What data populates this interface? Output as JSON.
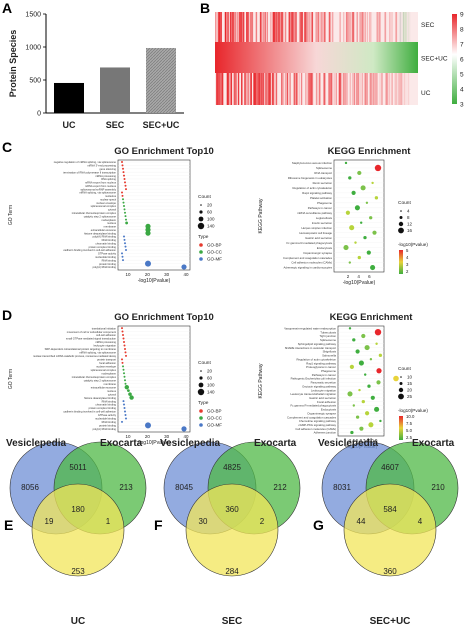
{
  "panels": {
    "A": {
      "letter": "A"
    },
    "B": {
      "letter": "B"
    },
    "C": {
      "letter": "C"
    },
    "D": {
      "letter": "D"
    },
    "E": {
      "letter": "E"
    },
    "F": {
      "letter": "F"
    },
    "G": {
      "letter": "G"
    }
  },
  "chart_data": [
    {
      "panel": "A",
      "type": "bar",
      "categories": [
        "UC",
        "SEC",
        "SEC+UC"
      ],
      "values": [
        455,
        690,
        985
      ],
      "ylabel": "Protein Species",
      "ylim": [
        0,
        1500
      ],
      "yticks": [
        "0",
        "500",
        "1000",
        "1500"
      ],
      "colors": [
        "#000000",
        "#777777",
        "#999999"
      ],
      "hatched": [
        false,
        false,
        true
      ]
    },
    {
      "panel": "B",
      "type": "heatmap",
      "rows": [
        "SEC",
        "SEC+UC",
        "UC"
      ],
      "legend_ticks": [
        "9",
        "8",
        "7",
        "6",
        "5",
        "4",
        "3"
      ],
      "colors": {
        "high": "#e8262b",
        "mid": "#ffffff",
        "low": "#3fae3f"
      }
    },
    {
      "panel": "C",
      "type": "scatter",
      "title": "GO Enrichment Top10",
      "ylabel": "GO Term",
      "xlabel": "-log10(Pvalue)",
      "xticks": [
        "10",
        "20",
        "30",
        "40"
      ],
      "legend": {
        "count_title": "Count",
        "count_values": [
          "20",
          "60",
          "100",
          "140"
        ],
        "type_title": "Type",
        "types": [
          {
            "name": "GO-BP",
            "color": "#e63a2e"
          },
          {
            "name": "GO-CC",
            "color": "#3aa843"
          },
          {
            "name": "GO-MF",
            "color": "#4a78c6"
          }
        ]
      },
      "terms": [
        "negative regulation of mRNA splicing, via spliceosome",
        "mRNA 3'-end processing",
        "gene silencing",
        "termination of RNA polymerase II transcription",
        "mRNA processing",
        "RNA splicing",
        "mRNA export from nucleus",
        "mRNA export from nucleus",
        "spliceosomal snRNP assembly",
        "mRNA splicing, via spliceosome",
        "nucleolus",
        "nuclear speck",
        "nuclear envelope",
        "spliceosomal complex",
        "cytosol",
        "intracellular ribonucleoprotein complex",
        "catalytic step 2 spliceosome",
        "nucleoplasm",
        "nucleus",
        "membrane",
        "extracellular exosome",
        "histone deacetylase binding",
        "poly(A) RNA binding",
        "DNA binding",
        "chromatin binding",
        "protein complex binding",
        "cadherin binding involved in cell-cell adhesion",
        "GTPase activity",
        "nucleotide binding",
        "RNA binding",
        "protein binding",
        "poly(A) RNA binding"
      ]
    },
    {
      "panel": "C",
      "type": "scatter",
      "title": "KEGG Enrichment",
      "ylabel": "KEGG Pathway",
      "xlabel": "-log10(Pvalue)",
      "xticks": [
        "2",
        "4",
        "6"
      ],
      "legend": {
        "count_title": "Count",
        "count_values": [
          "4",
          "8",
          "12",
          "16"
        ],
        "color_title": "-log10(Pvalue)",
        "color_ticks": [
          "5",
          "4",
          "3",
          "2"
        ]
      },
      "terms": [
        "Staphylococcus aureus infection",
        "Spliceosome",
        "RNA transport",
        "Ribosome biogenesis in eukaryotes",
        "Renin secretion",
        "Regulation of actin cytoskeleton",
        "Rap1 signaling pathway",
        "Platelet activation",
        "Phagosome",
        "Pathways in cancer",
        "mRNA surveillance pathway",
        "Legionellosis",
        "Insulin secretion",
        "Herpes simplex infection",
        "Hematopoietic cell lineage",
        "Gastric acid secretion",
        "Fc gamma R-mediated phagocytosis",
        "Endocytosis",
        "Dopaminergic synapse",
        "Complement and coagulation cascades",
        "Cell adhesion molecules (CAMs)",
        "Adrenergic signaling in cardiomyocytes"
      ]
    },
    {
      "panel": "D",
      "type": "scatter",
      "title": "GO Enrichment Top10",
      "ylabel": "GO Term",
      "xlabel": "-log10(Pvalue)",
      "xticks": [
        "10",
        "20",
        "30",
        "40"
      ],
      "legend": {
        "count_title": "Count",
        "count_values": [
          "20",
          "60",
          "100",
          "140"
        ],
        "type_title": "Type",
        "types": [
          {
            "name": "GO-BP",
            "color": "#e63a2e"
          },
          {
            "name": "GO-CC",
            "color": "#3aa843"
          },
          {
            "name": "GO-MF",
            "color": "#4a78c6"
          }
        ]
      },
      "terms": [
        "translational initiation",
        "movement of cell or subcellular component",
        "cell-cell adhesion",
        "small GTPase mediated signal transduction",
        "mRNA processing",
        "leukocyte migration",
        "SRP-dependent cotranslational protein targeting to membrane",
        "mRNA splicing, via spliceosome",
        "nuclear-transcribed mRNA catabolic process, nonsense-mediated decay",
        "protein transport",
        "focal adhesion",
        "nuclear envelope",
        "spliceosomal complex",
        "nucleoplasm",
        "intracellular ribonucleoprotein complex",
        "catalytic step 2 spliceosome",
        "membrane",
        "extracellular exosome",
        "nucleus",
        "cytosol",
        "histone deacetylase binding",
        "RNA binding",
        "chromatin binding",
        "protein complex binding",
        "cadherin binding involved in cell-cell adhesion",
        "GTPase activity",
        "nucleotide binding",
        "RNA binding",
        "protein binding",
        "poly(A) RNA binding"
      ]
    },
    {
      "panel": "D",
      "type": "scatter",
      "title": "KEGG Enrichment",
      "ylabel": "KEGG Pathway",
      "xlabel": "-log10(Pvalue)",
      "xticks": [
        "2.5",
        "5.0",
        "7.5",
        "10.0"
      ],
      "legend": {
        "count_title": "Count",
        "count_values": [
          "10",
          "15",
          "20",
          "25"
        ],
        "color_title": "-log10(Pvalue)",
        "color_ticks": [
          "10.0",
          "7.5",
          "5.0",
          "2.5"
        ]
      },
      "terms": [
        "Vasopressin-regulated water reabsorption",
        "Tuberculosis",
        "Tight junction",
        "Spliceosome",
        "Sphingolipid signaling pathway",
        "SNARE interactions in vesicular transport",
        "Shigellosis",
        "Salmonella",
        "Regulation of actin cytoskeleton",
        "Rap1 signaling pathway",
        "Proteoglycans in cancer",
        "Phagosome",
        "Pathways in cancer",
        "Pathogenic Escherichia coli infection",
        "Pancreatic secretion",
        "Oxytocin signaling pathway",
        "Leukocyte migration",
        "Leukocyte transendothelial migration",
        "Gastric acid secretion",
        "Focal adhesion",
        "Fc gamma R-mediated phagocytosis",
        "Endocytosis",
        "Dopaminergic synapse",
        "Complement and coagulation cascades",
        "Chemokine signaling pathway",
        "cGMP-PKG signaling pathway",
        "Cell adhesion molecules (CAMs)",
        "Adherens junction"
      ]
    },
    {
      "panel": "E",
      "type": "venn",
      "sets": [
        "Vesiclepedia",
        "Exocarta",
        "UC"
      ],
      "regions": {
        "a_only": "8056",
        "ab": "5011",
        "b_only": "213",
        "abc": "180",
        "ac": "19",
        "bc": "1",
        "c_only": "253"
      }
    },
    {
      "panel": "F",
      "type": "venn",
      "sets": [
        "Vesiclepedia",
        "Exocarta",
        "SEC"
      ],
      "regions": {
        "a_only": "8045",
        "ab": "4825",
        "b_only": "212",
        "abc": "360",
        "ac": "30",
        "bc": "2",
        "c_only": "284"
      }
    },
    {
      "panel": "G",
      "type": "venn",
      "sets": [
        "Vesiclepedia",
        "Exocarta",
        "SEC+UC"
      ],
      "regions": {
        "a_only": "8031",
        "ab": "4607",
        "b_only": "210",
        "abc": "584",
        "ac": "44",
        "bc": "4",
        "c_only": "360"
      }
    }
  ]
}
